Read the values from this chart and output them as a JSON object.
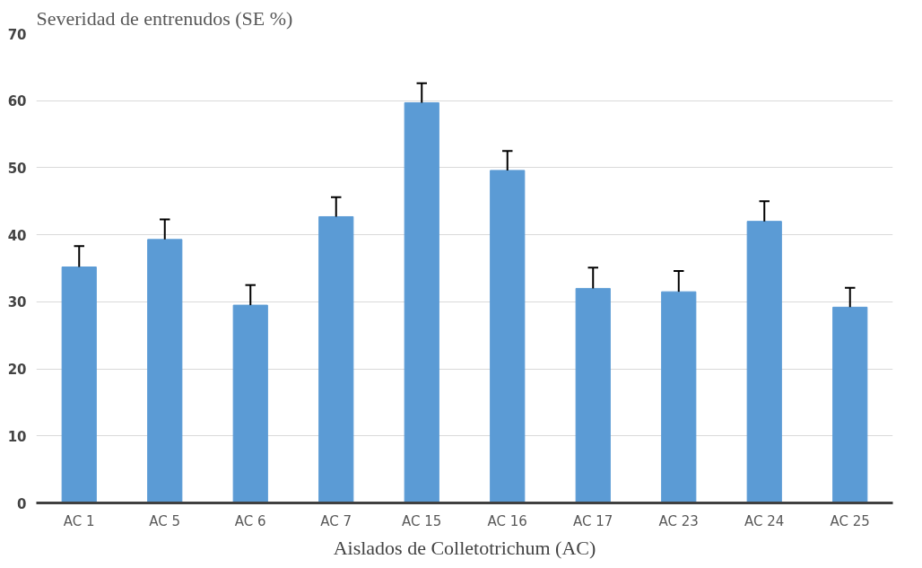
{
  "chart_data": {
    "type": "bar",
    "ylabel": "Severidad de entrenudos (SE %)",
    "xlabel": "Aislados de Colletotrichum (AC)",
    "categories": [
      "AC 1",
      "AC 5",
      "AC 6",
      "AC 7",
      "AC 15",
      "AC 16",
      "AC 17",
      "AC 23",
      "AC 24",
      "AC 25"
    ],
    "values": [
      35.2,
      39.3,
      29.5,
      42.7,
      59.7,
      49.6,
      32.0,
      31.5,
      42.0,
      29.2
    ],
    "errors": [
      [
        35.2,
        38.3
      ],
      [
        39.3,
        42.3
      ],
      [
        29.5,
        32.5
      ],
      [
        42.7,
        45.6
      ],
      [
        59.7,
        62.6
      ],
      [
        49.6,
        52.5
      ],
      [
        32.0,
        35.1
      ],
      [
        31.5,
        34.6
      ],
      [
        42.0,
        45.0
      ],
      [
        29.2,
        32.1
      ]
    ],
    "color": "#5b9bd5",
    "ylim": [
      0,
      70
    ],
    "yticks": [
      0,
      10,
      20,
      30,
      40,
      50,
      60,
      70
    ],
    "grid": "y"
  }
}
